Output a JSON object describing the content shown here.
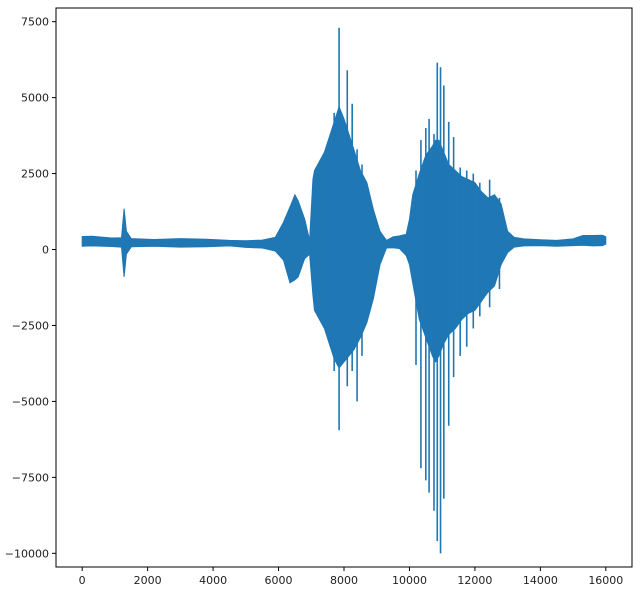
{
  "chart_data": {
    "type": "line",
    "title": "",
    "xlabel": "",
    "ylabel": "",
    "xlim": [
      -800,
      16800
    ],
    "ylim": [
      -10450,
      7950
    ],
    "grid": false,
    "legend": "none",
    "series_color": "#1f77b4",
    "xticks": [
      0,
      2000,
      4000,
      6000,
      8000,
      10000,
      12000,
      14000,
      16000
    ],
    "xtick_labels": [
      "0",
      "2000",
      "4000",
      "6000",
      "8000",
      "10000",
      "12000",
      "14000",
      "16000"
    ],
    "yticks": [
      7500,
      5000,
      2500,
      0,
      -2500,
      -5000,
      -7500,
      -10000
    ],
    "ytick_labels": [
      "7500",
      "5000",
      "2500",
      "0",
      "−2500",
      "−5000",
      "−7500",
      "−10000"
    ],
    "envelope": {
      "x": [
        0,
        300,
        900,
        1200,
        1280,
        1350,
        1500,
        2200,
        3000,
        3800,
        4500,
        5000,
        5500,
        5900,
        6150,
        6350,
        6500,
        6600,
        6800,
        6950,
        7050,
        7100,
        7400,
        7700,
        7850,
        8000,
        8150,
        8300,
        8500,
        8700,
        8900,
        9100,
        9300,
        9500,
        9700,
        9900,
        10000,
        10100,
        10300,
        10500,
        10700,
        10800,
        10900,
        11050,
        11200,
        11400,
        11600,
        11800,
        12000,
        12200,
        12400,
        12600,
        12800,
        13000,
        13200,
        13500,
        14000,
        14500,
        15000,
        15300,
        15600,
        15900,
        16000
      ],
      "max": [
        430,
        440,
        380,
        390,
        1350,
        600,
        360,
        330,
        360,
        340,
        300,
        290,
        310,
        400,
        900,
        1400,
        1800,
        1600,
        1000,
        300,
        2300,
        2600,
        3200,
        4200,
        4700,
        4300,
        3800,
        3300,
        2600,
        2200,
        1300,
        600,
        300,
        420,
        450,
        500,
        1000,
        1800,
        2500,
        3100,
        3400,
        3600,
        3600,
        3200,
        2800,
        2600,
        2400,
        2300,
        2200,
        1900,
        1700,
        1800,
        1500,
        600,
        400,
        350,
        320,
        300,
        350,
        460,
        460,
        470,
        420
      ],
      "min": [
        110,
        120,
        100,
        80,
        -900,
        -150,
        90,
        110,
        80,
        90,
        120,
        70,
        50,
        -50,
        -350,
        -1100,
        -1000,
        -900,
        -300,
        -150,
        -1500,
        -2000,
        -2600,
        -3600,
        -3900,
        -3700,
        -3500,
        -3300,
        -2900,
        -2400,
        -1600,
        -500,
        50,
        60,
        30,
        -200,
        -500,
        -1100,
        -2300,
        -2900,
        -3500,
        -3700,
        -3500,
        -3100,
        -2800,
        -2600,
        -2300,
        -2100,
        -2000,
        -1700,
        -1400,
        -1200,
        -500,
        -100,
        80,
        120,
        130,
        110,
        130,
        140,
        120,
        130,
        180
      ]
    },
    "spikes": [
      {
        "x": 7850,
        "max": 7300,
        "min": -5950
      },
      {
        "x": 7700,
        "max": 4500,
        "min": -4000
      },
      {
        "x": 8100,
        "max": 5900,
        "min": -4500
      },
      {
        "x": 8250,
        "max": 4800,
        "min": -4000
      },
      {
        "x": 8400,
        "max": 3300,
        "min": -5000
      },
      {
        "x": 8550,
        "max": 2800,
        "min": -3500
      },
      {
        "x": 10200,
        "max": 2600,
        "min": -3800
      },
      {
        "x": 10350,
        "max": 3600,
        "min": -7200
      },
      {
        "x": 10500,
        "max": 4000,
        "min": -7600
      },
      {
        "x": 10600,
        "max": 4300,
        "min": -8000
      },
      {
        "x": 10750,
        "max": 3800,
        "min": -8600
      },
      {
        "x": 10850,
        "max": 6150,
        "min": -9600
      },
      {
        "x": 10950,
        "max": 6000,
        "min": -10000
      },
      {
        "x": 11050,
        "max": 5400,
        "min": -8200
      },
      {
        "x": 11200,
        "max": 4200,
        "min": -5800
      },
      {
        "x": 11350,
        "max": 3700,
        "min": -4200
      },
      {
        "x": 11550,
        "max": 2700,
        "min": -3500
      },
      {
        "x": 11750,
        "max": 2600,
        "min": -3200
      },
      {
        "x": 11950,
        "max": 2500,
        "min": -2600
      },
      {
        "x": 12150,
        "max": 2200,
        "min": -2200
      },
      {
        "x": 12450,
        "max": 2300,
        "min": -1900
      },
      {
        "x": 12750,
        "max": 1700,
        "min": -1300
      }
    ]
  }
}
